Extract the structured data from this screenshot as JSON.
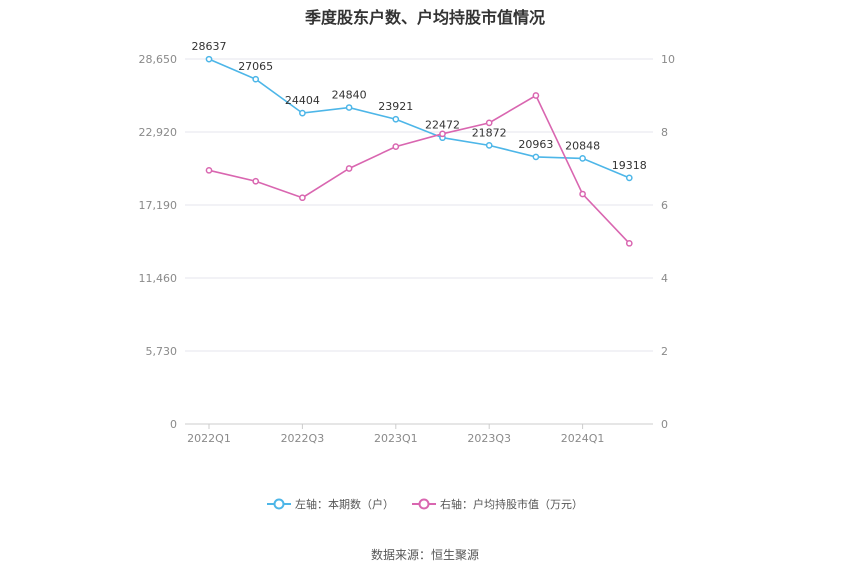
{
  "title": "季度股东户数、户均持股市值情况",
  "source": "数据来源：恒生聚源",
  "legend": [
    {
      "label": "左轴：本期数（户）",
      "color": "#4db6e8"
    },
    {
      "label": "右轴：户均持股市值（万元）",
      "color": "#d966b0"
    }
  ],
  "chart_data": {
    "type": "line",
    "x_tick_labels": [
      "2022Q1",
      "2022Q3",
      "2023Q1",
      "2023Q3",
      "2024Q1"
    ],
    "left_axis": {
      "ticks": [
        "0",
        "5,730",
        "11,460",
        "17,190",
        "22,920",
        "28,650"
      ],
      "ylim": [
        0,
        28650
      ]
    },
    "right_axis": {
      "ticks": [
        "0",
        "2",
        "4",
        "6",
        "8",
        "10"
      ],
      "ylim": [
        0,
        10
      ]
    },
    "grid": true,
    "series": [
      {
        "name": "本期数（户）",
        "axis": "left",
        "color": "#4db6e8",
        "values": [
          28637,
          27065,
          24404,
          24840,
          23921,
          22472,
          21872,
          20963,
          20848,
          19318
        ],
        "labels": [
          "28637",
          "27065",
          "24404",
          "24840",
          "23921",
          "22472",
          "21872",
          "20963",
          "20848",
          "19318"
        ]
      },
      {
        "name": "户均持股市值（万元）",
        "axis": "right",
        "color": "#d966b0",
        "values": [
          6.95,
          6.65,
          6.2,
          7.0,
          7.6,
          7.95,
          8.25,
          9.0,
          6.3,
          4.95
        ]
      }
    ]
  }
}
